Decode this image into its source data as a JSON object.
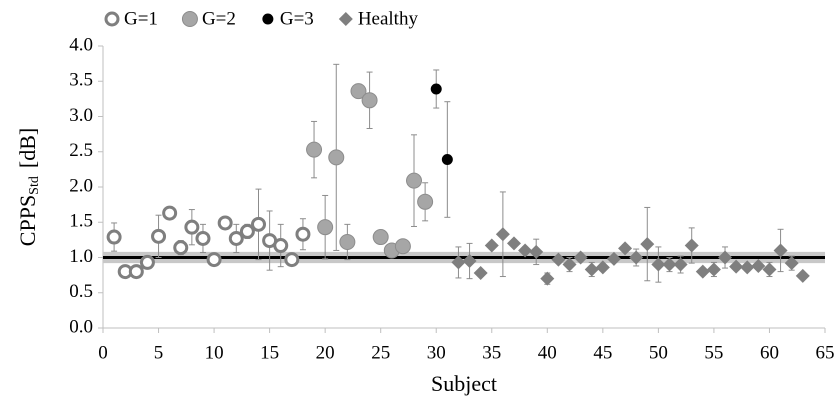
{
  "chart_data": {
    "type": "scatter",
    "x_label": "Subject",
    "y_label": "CPPS",
    "y_label_sub": "Std",
    "y_label_unit": "[dB]",
    "xlim": [
      0,
      65
    ],
    "xticks": [
      0,
      5,
      10,
      15,
      20,
      25,
      30,
      35,
      40,
      45,
      50,
      55,
      60,
      65
    ],
    "ylim": [
      0,
      4
    ],
    "yticks": [
      {
        "value": 0,
        "label": "0.0"
      },
      {
        "value": 0.5,
        "label": "0.5"
      },
      {
        "value": 1,
        "label": "1.0"
      },
      {
        "value": 1.5,
        "label": "1.5"
      },
      {
        "value": 2,
        "label": "2.0"
      },
      {
        "value": 2.5,
        "label": "2.5"
      },
      {
        "value": 3,
        "label": "3.0"
      },
      {
        "value": 3.5,
        "label": "3.5"
      },
      {
        "value": 4,
        "label": "4.0"
      }
    ],
    "grid": false,
    "legend": "top",
    "reference_line": {
      "value": 1,
      "band": [
        0.92,
        1.08
      ],
      "color": "#000000",
      "band_color": "#c8c8c8"
    },
    "series": [
      {
        "name": "G=1",
        "marker": "open-circle",
        "color": "#7f7f7f",
        "x": [
          1,
          2,
          3,
          4,
          5,
          6,
          7,
          8,
          9,
          10,
          11,
          12,
          13,
          14,
          15,
          16,
          17,
          18
        ],
        "values": [
          1.29,
          0.8,
          0.8,
          0.93,
          1.3,
          1.63,
          1.14,
          1.43,
          1.27,
          0.97,
          1.49,
          1.27,
          1.37,
          1.47,
          1.24,
          1.17,
          0.97,
          1.33
        ],
        "errors": [
          0.2,
          0.03,
          0.03,
          0.05,
          0.3,
          0.07,
          0.1,
          0.25,
          0.2,
          0.05,
          0.05,
          0.2,
          0.1,
          0.5,
          0.42,
          0.3,
          0.05,
          0.22
        ]
      },
      {
        "name": "G=2",
        "marker": "circle",
        "color": "#a6a6a6",
        "x": [
          19,
          20,
          21,
          22,
          23,
          24,
          25,
          26,
          27,
          28,
          29
        ],
        "values": [
          2.53,
          1.43,
          2.42,
          1.22,
          3.36,
          3.23,
          1.29,
          1.1,
          1.16,
          2.09,
          1.79
        ],
        "errors": [
          0.4,
          0.45,
          1.32,
          0.25,
          0.1,
          0.4,
          0.05,
          0.05,
          0.05,
          0.65,
          0.27
        ]
      },
      {
        "name": "G=3",
        "marker": "circle",
        "color": "#000000",
        "x": [
          30,
          31
        ],
        "values": [
          3.39,
          2.39
        ],
        "errors": [
          0.27,
          0.82
        ]
      },
      {
        "name": "Healthy",
        "marker": "diamond",
        "color": "#7f7f7f",
        "x": [
          32,
          33,
          34,
          35,
          36,
          37,
          38,
          39,
          40,
          41,
          42,
          43,
          44,
          45,
          46,
          47,
          48,
          49,
          50,
          51,
          52,
          53,
          54,
          55,
          56,
          57,
          58,
          59,
          60,
          61,
          62,
          63
        ],
        "values": [
          0.93,
          0.95,
          0.78,
          1.17,
          1.33,
          1.2,
          1.1,
          1.08,
          0.7,
          0.97,
          0.9,
          1.0,
          0.83,
          0.86,
          0.98,
          1.13,
          1.0,
          1.19,
          0.9,
          0.9,
          0.9,
          1.17,
          0.8,
          0.83,
          1.0,
          0.87,
          0.86,
          0.88,
          0.83,
          1.1,
          0.92,
          0.74
        ],
        "errors": [
          0.22,
          0.25,
          0.05,
          0.05,
          0.6,
          0.05,
          0.05,
          0.18,
          0.08,
          0.05,
          0.1,
          0.05,
          0.1,
          0.05,
          0.05,
          0.05,
          0.12,
          0.52,
          0.25,
          0.1,
          0.12,
          0.25,
          0.05,
          0.1,
          0.15,
          0.05,
          0.05,
          0.05,
          0.1,
          0.3,
          0.1,
          0.03
        ]
      }
    ]
  }
}
